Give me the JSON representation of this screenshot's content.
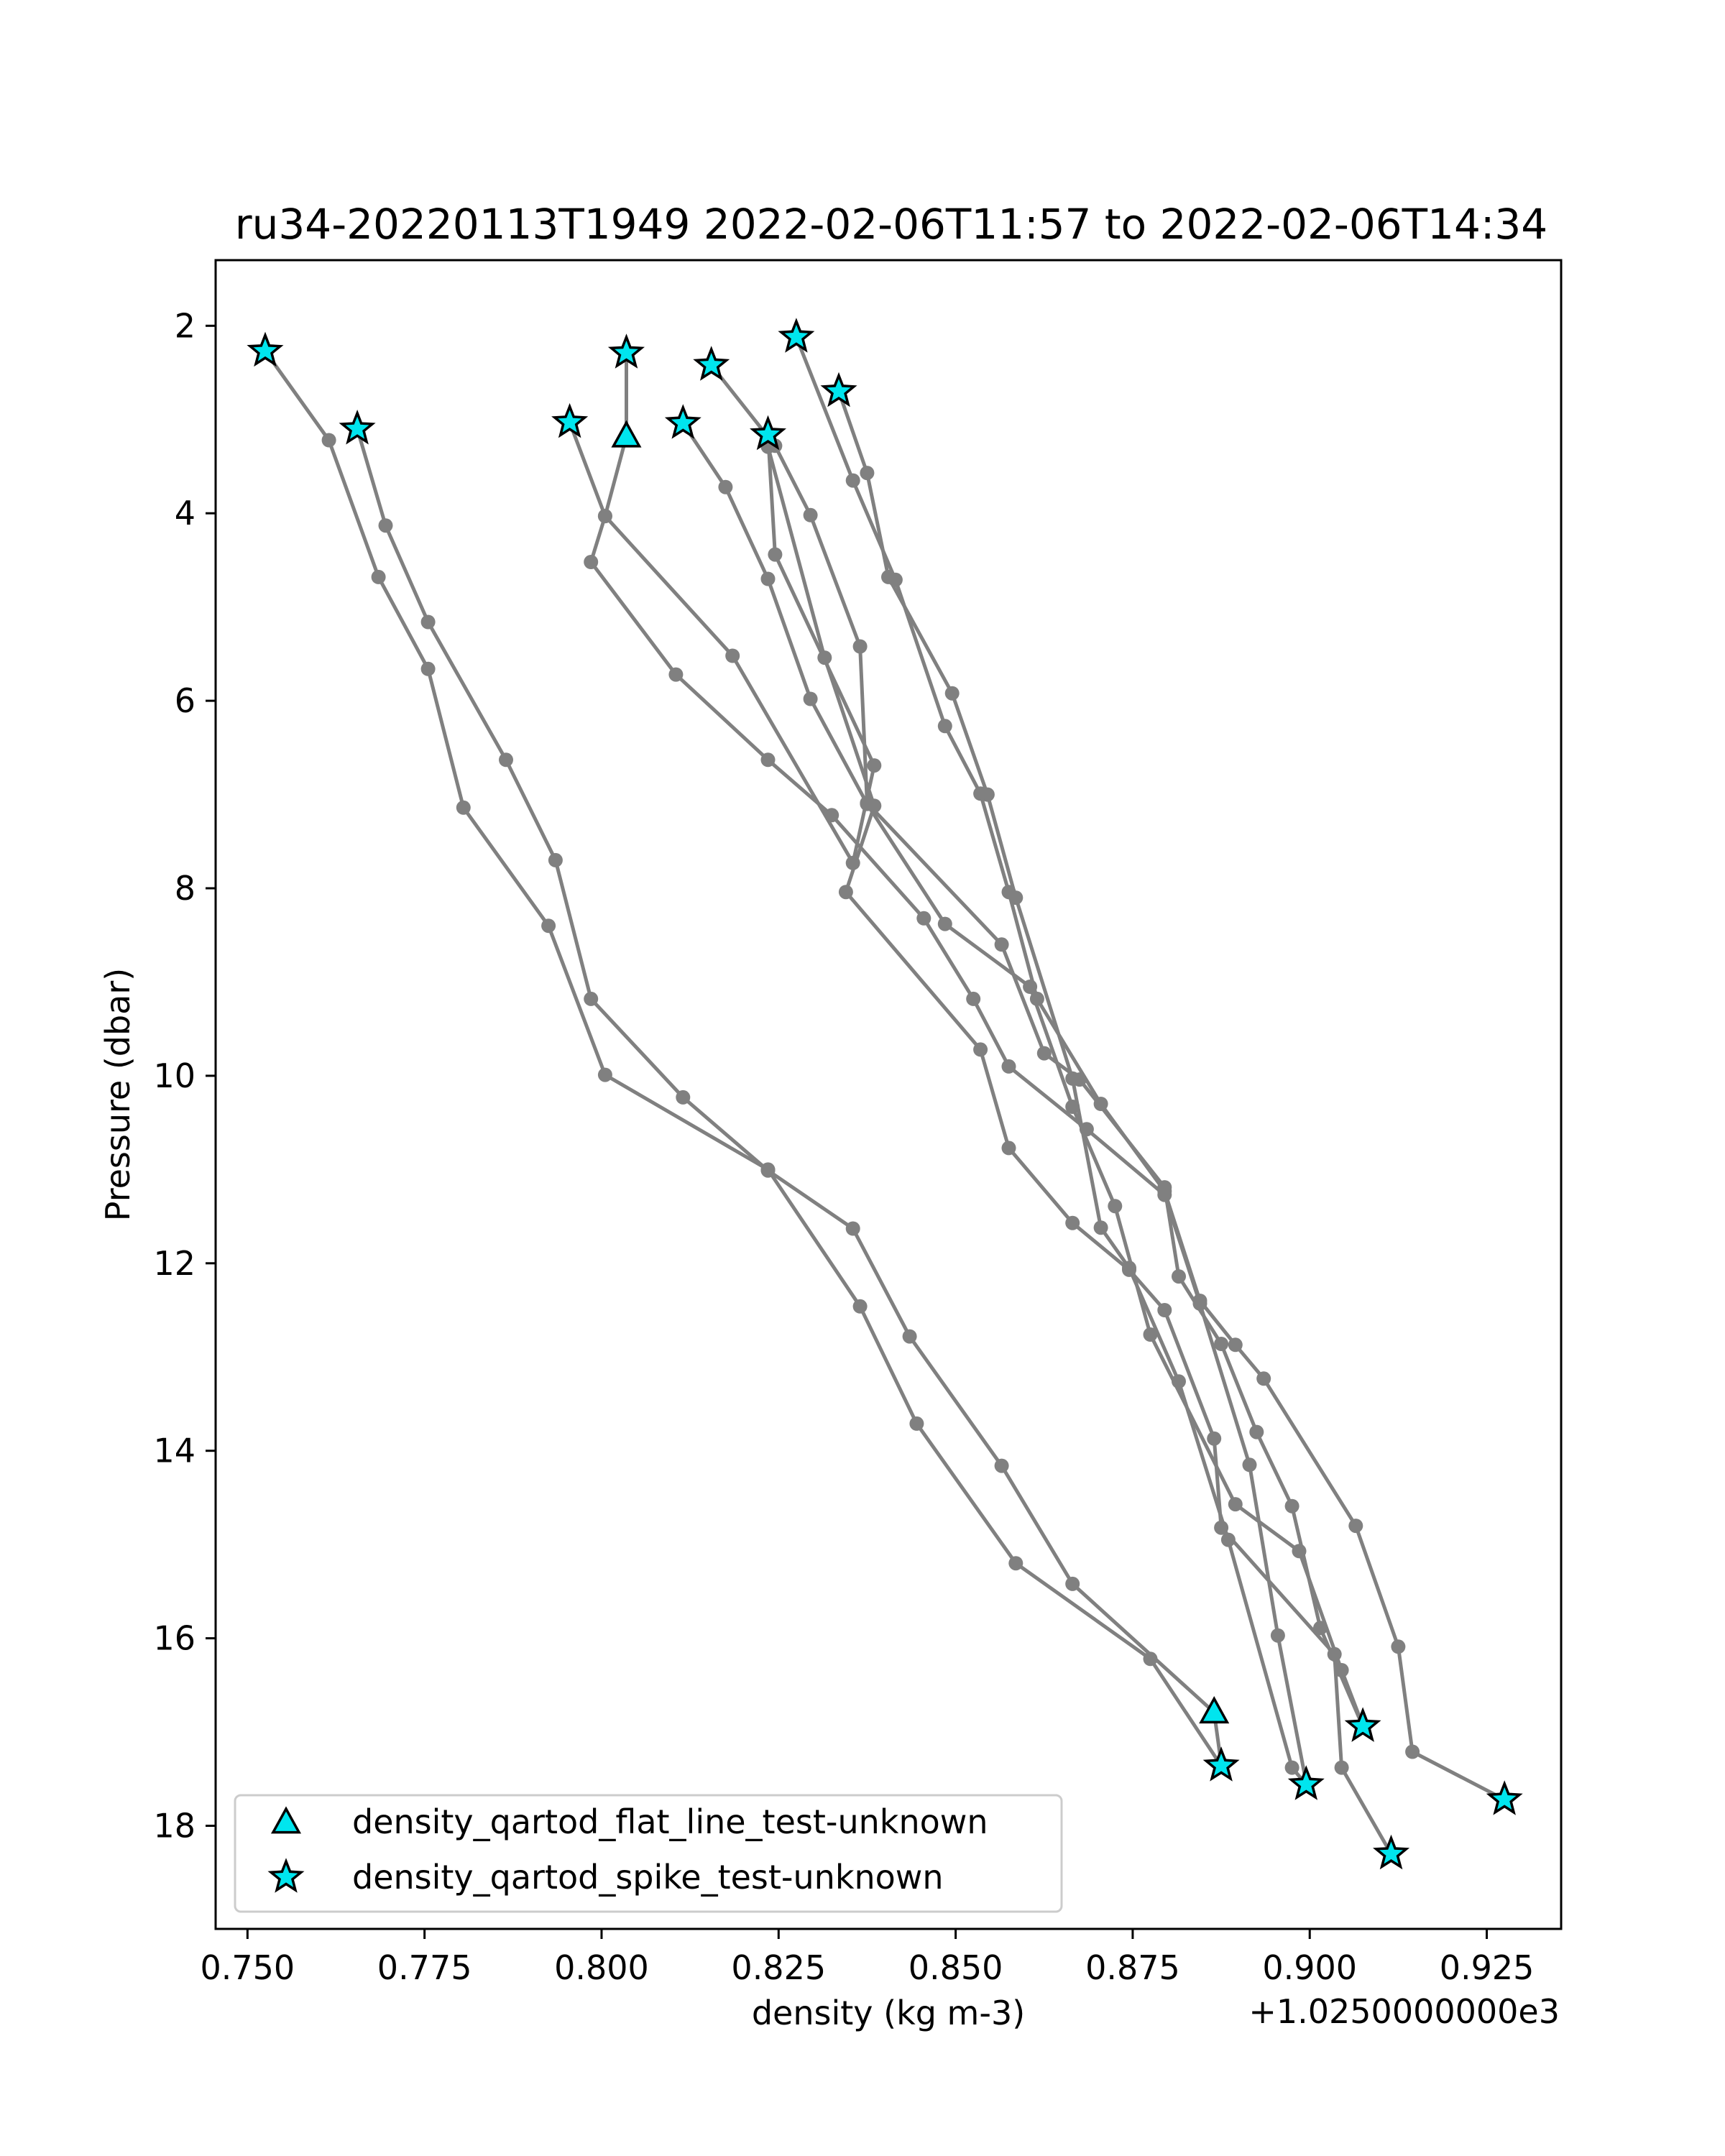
{
  "chart_data": {
    "type": "line",
    "title": "ru34-20220113T1949 2022-02-06T11:57 to 2022-02-06T14:34",
    "xlabel": "density (kg m-3)",
    "ylabel": "Pressure (dbar)",
    "x_offset_label": "+1.0250000000e3",
    "xlim": [
      0.7455,
      0.9355
    ],
    "ylim": [
      19.1,
      1.3
    ],
    "y_inverted": true,
    "xticks": [
      0.75,
      0.775,
      0.8,
      0.825,
      0.85,
      0.875,
      0.9,
      0.925
    ],
    "xtick_labels": [
      "0.750",
      "0.775",
      "0.800",
      "0.825",
      "0.850",
      "0.875",
      "0.900",
      "0.925"
    ],
    "yticks": [
      2,
      4,
      6,
      8,
      10,
      12,
      14,
      16,
      18
    ],
    "ytick_labels": [
      "2",
      "4",
      "6",
      "8",
      "10",
      "12",
      "14",
      "16",
      "18"
    ],
    "grid": false,
    "line_color": "#808080",
    "marker_color": "#00e5ee",
    "legend": {
      "placement": "lower-left",
      "entries": [
        {
          "label": "density_qartod_flat_line_test-unknown",
          "marker": "triangle"
        },
        {
          "label": "density_qartod_spike_test-unknown",
          "marker": "star"
        }
      ]
    },
    "series": [
      {
        "points": [
          [
            0.7525,
            2.27
          ],
          [
            0.7615,
            3.22
          ],
          [
            0.7685,
            4.68
          ],
          [
            0.7755,
            5.66
          ],
          [
            0.7805,
            7.14
          ],
          [
            0.7925,
            8.4
          ],
          [
            0.8005,
            9.99
          ],
          [
            0.8235,
            11.0
          ],
          [
            0.8365,
            12.46
          ],
          [
            0.8445,
            13.71
          ],
          [
            0.8585,
            15.2
          ],
          [
            0.8775,
            16.22
          ],
          [
            0.8875,
            17.36
          ]
        ]
      },
      {
        "points": [
          [
            0.8875,
            17.34
          ],
          [
            0.8865,
            16.79
          ],
          [
            0.8665,
            15.42
          ],
          [
            0.8565,
            14.16
          ],
          [
            0.8435,
            12.78
          ],
          [
            0.8355,
            11.63
          ],
          [
            0.8235,
            11.01
          ],
          [
            0.8115,
            10.23
          ],
          [
            0.7985,
            9.18
          ],
          [
            0.7935,
            7.7
          ],
          [
            0.7865,
            6.63
          ],
          [
            0.7755,
            5.16
          ],
          [
            0.7695,
            4.13
          ],
          [
            0.7655,
            3.1
          ]
        ]
      },
      {
        "points": [
          [
            0.8035,
            2.29
          ],
          [
            0.8035,
            3.18
          ],
          [
            0.8005,
            4.03
          ],
          [
            0.7985,
            4.52
          ],
          [
            0.8105,
            5.72
          ],
          [
            0.8235,
            6.63
          ],
          [
            0.8325,
            7.22
          ],
          [
            0.8455,
            8.32
          ],
          [
            0.8525,
            9.18
          ],
          [
            0.8575,
            9.9
          ],
          [
            0.8685,
            10.57
          ],
          [
            0.8795,
            11.27
          ],
          [
            0.8845,
            12.43
          ],
          [
            0.8915,
            14.15
          ],
          [
            0.8955,
            15.97
          ],
          [
            0.8995,
            17.54
          ]
        ]
      },
      {
        "points": [
          [
            0.8995,
            17.56
          ],
          [
            0.8975,
            17.38
          ],
          [
            0.8885,
            14.95
          ],
          [
            0.8815,
            13.26
          ],
          [
            0.8745,
            12.05
          ],
          [
            0.8705,
            11.62
          ],
          [
            0.8665,
            10.03
          ],
          [
            0.8585,
            8.1
          ],
          [
            0.8545,
            7.0
          ],
          [
            0.8495,
            5.92
          ],
          [
            0.8405,
            4.68
          ],
          [
            0.8375,
            3.57
          ],
          [
            0.8335,
            2.7
          ]
        ]
      },
      {
        "points": [
          [
            0.8115,
            3.04
          ],
          [
            0.8175,
            3.72
          ],
          [
            0.8235,
            4.7
          ],
          [
            0.8295,
            5.98
          ],
          [
            0.8375,
            7.1
          ],
          [
            0.8485,
            8.38
          ],
          [
            0.8605,
            9.05
          ],
          [
            0.8665,
            10.33
          ],
          [
            0.8725,
            11.39
          ],
          [
            0.8775,
            12.76
          ],
          [
            0.8895,
            14.57
          ],
          [
            0.8985,
            15.07
          ],
          [
            0.9045,
            16.34
          ],
          [
            0.9075,
            16.93
          ]
        ]
      },
      {
        "points": [
          [
            0.9075,
            16.94
          ],
          [
            0.9015,
            15.89
          ],
          [
            0.8975,
            14.59
          ],
          [
            0.8925,
            13.8
          ],
          [
            0.8875,
            12.86
          ],
          [
            0.8815,
            12.14
          ],
          [
            0.8795,
            11.19
          ],
          [
            0.8675,
            10.04
          ],
          [
            0.8625,
            9.76
          ],
          [
            0.8565,
            8.6
          ],
          [
            0.8375,
            7.09
          ],
          [
            0.8365,
            5.42
          ],
          [
            0.8295,
            4.02
          ],
          [
            0.8245,
            3.28
          ],
          [
            0.8155,
            2.42
          ]
        ]
      },
      {
        "points": [
          [
            0.7955,
            3.03
          ],
          [
            0.8005,
            4.03
          ],
          [
            0.8185,
            5.52
          ],
          [
            0.8355,
            7.73
          ],
          [
            0.8385,
            6.69
          ],
          [
            0.8245,
            4.44
          ],
          [
            0.8235,
            3.16
          ]
        ]
      },
      {
        "points": [
          [
            0.8235,
            3.17
          ],
          [
            0.8235,
            3.29
          ],
          [
            0.8315,
            5.54
          ],
          [
            0.8385,
            7.12
          ],
          [
            0.8345,
            8.04
          ],
          [
            0.8535,
            9.72
          ],
          [
            0.8575,
            10.77
          ],
          [
            0.8665,
            11.57
          ],
          [
            0.8745,
            12.07
          ],
          [
            0.8795,
            12.5
          ],
          [
            0.8865,
            13.87
          ],
          [
            0.8875,
            14.82
          ],
          [
            0.9035,
            16.17
          ],
          [
            0.9045,
            17.38
          ],
          [
            0.9115,
            18.3
          ]
        ]
      },
      {
        "points": [
          [
            0.9275,
            17.72
          ],
          [
            0.9145,
            17.21
          ],
          [
            0.9125,
            16.09
          ],
          [
            0.9065,
            14.8
          ],
          [
            0.8935,
            13.23
          ],
          [
            0.8895,
            12.87
          ],
          [
            0.8845,
            12.4
          ],
          [
            0.8795,
            11.23
          ],
          [
            0.8705,
            10.3
          ],
          [
            0.8615,
            9.18
          ],
          [
            0.8575,
            8.04
          ],
          [
            0.8535,
            6.99
          ],
          [
            0.8485,
            6.27
          ],
          [
            0.8415,
            4.71
          ],
          [
            0.8355,
            3.65
          ],
          [
            0.8275,
            2.12
          ]
        ]
      }
    ],
    "qartod_flat_line_flags": [
      [
        0.8035,
        3.18
      ],
      [
        0.8865,
        16.79
      ]
    ],
    "qartod_spike_flags": [
      [
        0.7525,
        2.27
      ],
      [
        0.7655,
        3.1
      ],
      [
        0.8035,
        2.29
      ],
      [
        0.7955,
        3.03
      ],
      [
        0.8155,
        2.42
      ],
      [
        0.8115,
        3.04
      ],
      [
        0.8235,
        3.16
      ],
      [
        0.8275,
        2.12
      ],
      [
        0.8335,
        2.7
      ],
      [
        0.8875,
        17.36
      ],
      [
        0.8995,
        17.56
      ],
      [
        0.9075,
        16.94
      ],
      [
        0.9115,
        18.3
      ],
      [
        0.9275,
        17.72
      ]
    ]
  }
}
